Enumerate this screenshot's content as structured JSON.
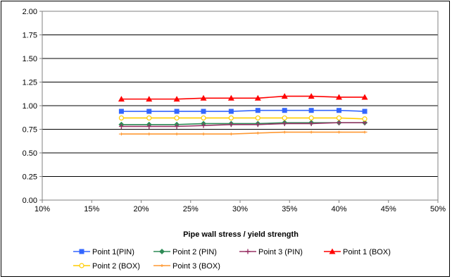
{
  "chart_data": {
    "type": "line",
    "title": "",
    "xlabel": "Pipe wall stress / yield strength",
    "ylabel": "",
    "xlim": [
      0.1,
      0.5
    ],
    "ylim": [
      0,
      2.0
    ],
    "x_ticks": [
      0.1,
      0.15,
      0.2,
      0.25,
      0.3,
      0.35,
      0.4,
      0.45,
      0.5
    ],
    "x_tick_labels": [
      "10%",
      "15%",
      "20%",
      "25%",
      "30%",
      "35%",
      "40%",
      "45%",
      "50%"
    ],
    "y_ticks": [
      0,
      0.25,
      0.5,
      0.75,
      1.0,
      1.25,
      1.5,
      1.75,
      2.0
    ],
    "y_tick_labels": [
      "0.00",
      "0.25",
      "0.50",
      "0.75",
      "1.00",
      "1.25",
      "1.50",
      "1.75",
      "2.00"
    ],
    "grid": "horizontal",
    "legend_position": "bottom",
    "x": [
      0.18,
      0.208,
      0.236,
      0.263,
      0.291,
      0.318,
      0.345,
      0.372,
      0.4,
      0.426
    ],
    "series": [
      {
        "name": "Point 1(PIN)",
        "color": "#3366FF",
        "marker": "square",
        "values": [
          0.94,
          0.94,
          0.94,
          0.94,
          0.94,
          0.95,
          0.95,
          0.95,
          0.95,
          0.94
        ]
      },
      {
        "name": "Point 2 (PIN)",
        "color": "#2E8B57",
        "marker": "diamond",
        "values": [
          0.8,
          0.8,
          0.8,
          0.81,
          0.81,
          0.81,
          0.82,
          0.82,
          0.82,
          0.82
        ]
      },
      {
        "name": "Point 3 (PIN)",
        "color": "#993366",
        "marker": "plus",
        "values": [
          0.78,
          0.78,
          0.78,
          0.79,
          0.8,
          0.8,
          0.81,
          0.81,
          0.82,
          0.82
        ]
      },
      {
        "name": "Point 1 (BOX)",
        "color": "#FF0000",
        "marker": "triangle",
        "values": [
          1.07,
          1.07,
          1.07,
          1.08,
          1.08,
          1.08,
          1.1,
          1.1,
          1.09,
          1.09
        ]
      },
      {
        "name": "Point 2 (BOX)",
        "color": "#FFCC00",
        "marker": "circle",
        "values": [
          0.87,
          0.87,
          0.87,
          0.87,
          0.87,
          0.87,
          0.87,
          0.87,
          0.87,
          0.86
        ]
      },
      {
        "name": "Point 3 (BOX)",
        "color": "#FF9933",
        "marker": "dash",
        "values": [
          0.7,
          0.7,
          0.7,
          0.7,
          0.7,
          0.71,
          0.72,
          0.72,
          0.72,
          0.72
        ]
      }
    ]
  }
}
